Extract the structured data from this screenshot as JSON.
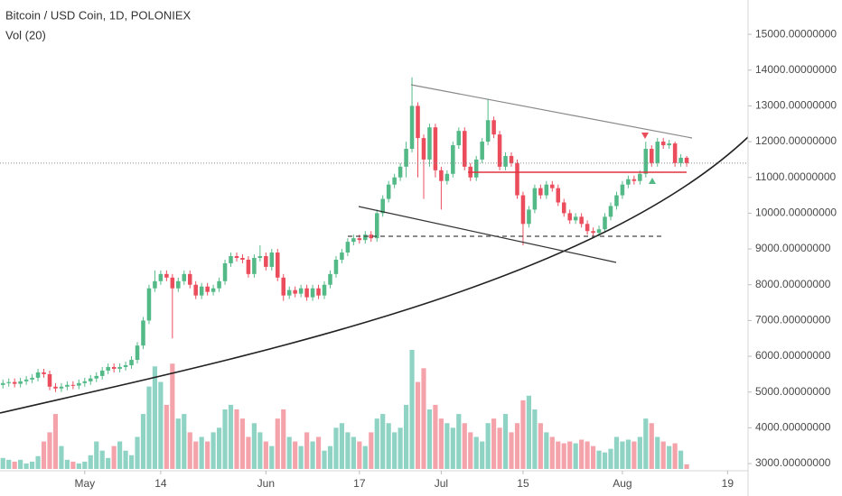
{
  "chart_data": {
    "type": "candlestick",
    "title": "Bitcoin / USD Coin, 1D, POLONIEX",
    "volume_label": "Vol (20)",
    "up_color": "#53b987",
    "down_color": "#eb4d5c",
    "volume_up_color": "#8fd3c4",
    "volume_down_color": "#f4a3ab",
    "categories": [
      null,
      null,
      null,
      null,
      null,
      null,
      null,
      null,
      null,
      null,
      null,
      null,
      null,
      null,
      "May",
      null,
      null,
      null,
      null,
      null,
      null,
      null,
      null,
      null,
      null,
      null,
      null,
      "14",
      null,
      null,
      null,
      null,
      null,
      null,
      null,
      null,
      null,
      null,
      null,
      null,
      null,
      null,
      null,
      null,
      null,
      "Jun",
      null,
      null,
      null,
      null,
      null,
      null,
      null,
      null,
      null,
      null,
      null,
      null,
      null,
      null,
      null,
      "17",
      null,
      null,
      null,
      null,
      null,
      null,
      null,
      null,
      null,
      null,
      null,
      null,
      null,
      "Jul",
      null,
      null,
      null,
      null,
      null,
      null,
      null,
      null,
      null,
      null,
      null,
      null,
      null,
      "15",
      null,
      null,
      null,
      null,
      null,
      null,
      null,
      null,
      null,
      null,
      null,
      null,
      null,
      null,
      null,
      null,
      "Aug",
      null,
      null,
      null,
      null,
      null,
      null,
      null,
      null,
      null,
      null,
      null,
      null,
      null,
      null,
      null,
      null,
      null,
      "19",
      null,
      null,
      null
    ],
    "open": [
      5200,
      5250,
      5280,
      5230,
      5300,
      5350,
      5400,
      5550,
      5500,
      5150,
      5100,
      5150,
      5200,
      5180,
      5250,
      5300,
      5380,
      5450,
      5600,
      5700,
      5650,
      5700,
      5750,
      5900,
      6300,
      7000,
      7900,
      8100,
      8300,
      8200,
      7900,
      8100,
      8300,
      8000,
      7700,
      7950,
      7800,
      7900,
      8100,
      8600,
      8800,
      8750,
      8700,
      8300,
      8750,
      8800,
      8500,
      8900,
      8200,
      7700,
      7850,
      7750,
      7900,
      7650,
      7900,
      7700,
      8000,
      8300,
      8700,
      8900,
      9200,
      9300,
      9250,
      9400,
      9300,
      10000,
      10400,
      10800,
      11000,
      11300,
      11800,
      13000,
      12100,
      11500,
      12400,
      11200,
      10900,
      11100,
      11900,
      12300,
      11300,
      11000,
      11500,
      12000,
      12600,
      12200,
      11300,
      11600,
      11400,
      10500,
      9700,
      10100,
      10700,
      10500,
      10800,
      10700,
      10300,
      10000,
      9800,
      9900,
      9700,
      9500,
      9450,
      9550,
      9900,
      10200,
      10500,
      10800,
      10950,
      10900,
      11100,
      11800,
      11400,
      12000,
      11900,
      11950,
      11400,
      11550,
      null,
      null,
      null,
      null,
      null,
      null,
      null,
      null,
      null,
      null
    ],
    "high": [
      5350,
      5380,
      5380,
      5400,
      5450,
      5500,
      5650,
      5650,
      5600,
      5250,
      5250,
      5300,
      5300,
      5350,
      5400,
      5480,
      5550,
      5700,
      5800,
      5800,
      5800,
      5850,
      6000,
      6400,
      7100,
      8000,
      8400,
      8400,
      8400,
      8300,
      8200,
      8400,
      8400,
      8100,
      8050,
      8050,
      8000,
      8200,
      8700,
      8900,
      8900,
      8850,
      8800,
      8850,
      9100,
      8900,
      9000,
      9000,
      8300,
      7950,
      7950,
      8000,
      8000,
      8000,
      8000,
      8100,
      8400,
      8800,
      9000,
      9300,
      9400,
      9400,
      9500,
      9500,
      10100,
      10500,
      10900,
      11100,
      11400,
      12000,
      13800,
      13100,
      12200,
      12500,
      12500,
      11300,
      11200,
      12000,
      12400,
      12400,
      11400,
      11600,
      12100,
      13200,
      12700,
      12300,
      11700,
      11700,
      11500,
      10600,
      10200,
      10800,
      10800,
      10900,
      10900,
      10800,
      10400,
      10100,
      10000,
      10000,
      9800,
      9600,
      9650,
      10000,
      10300,
      10600,
      10900,
      11050,
      11050,
      11200,
      12000,
      11900,
      12100,
      12100,
      12050,
      12000,
      11650,
      11600,
      null,
      null,
      null,
      null,
      null,
      null,
      null,
      null,
      null,
      null
    ],
    "low": [
      5100,
      5150,
      5130,
      5130,
      5200,
      5250,
      5300,
      5400,
      5050,
      5000,
      5000,
      5050,
      5080,
      5080,
      5150,
      5200,
      5280,
      5350,
      5500,
      5550,
      5550,
      5600,
      5650,
      5800,
      6200,
      6900,
      7800,
      8000,
      8100,
      6500,
      7800,
      8000,
      7900,
      7600,
      7600,
      7700,
      7700,
      7800,
      8000,
      8500,
      8650,
      8600,
      8200,
      8200,
      8650,
      8400,
      8400,
      8100,
      7550,
      7600,
      7650,
      7650,
      7550,
      7550,
      7600,
      7600,
      7900,
      8200,
      8600,
      8800,
      9100,
      9150,
      9150,
      9200,
      9200,
      9900,
      10300,
      10700,
      10900,
      11000,
      11700,
      11000,
      10400,
      11300,
      11000,
      10100,
      10800,
      11000,
      11800,
      11200,
      10900,
      10900,
      11400,
      11900,
      12100,
      11200,
      11200,
      11300,
      10400,
      9100,
      9600,
      10000,
      10400,
      10400,
      10600,
      10200,
      9900,
      9700,
      9700,
      9600,
      9400,
      9350,
      9350,
      9450,
      9800,
      10100,
      10400,
      10700,
      10800,
      10800,
      11000,
      11300,
      11300,
      11800,
      11800,
      11300,
      11300,
      11300,
      null,
      null,
      null,
      null,
      null,
      null,
      null,
      null,
      null,
      null
    ],
    "close": [
      5250,
      5280,
      5230,
      5300,
      5350,
      5400,
      5550,
      5500,
      5150,
      5100,
      5150,
      5200,
      5180,
      5250,
      5300,
      5380,
      5450,
      5600,
      5700,
      5650,
      5700,
      5750,
      5900,
      6300,
      7000,
      7900,
      8100,
      8300,
      8200,
      7900,
      8100,
      8300,
      8000,
      7700,
      7950,
      7800,
      7900,
      8100,
      8600,
      8800,
      8750,
      8700,
      8300,
      8750,
      8800,
      8500,
      8900,
      8200,
      7700,
      7850,
      7750,
      7900,
      7650,
      7900,
      7700,
      8000,
      8300,
      8700,
      8900,
      9200,
      9300,
      9250,
      9400,
      9300,
      10000,
      10400,
      10800,
      11000,
      11300,
      11800,
      13000,
      12100,
      11500,
      12400,
      11200,
      10900,
      11100,
      11900,
      12300,
      11300,
      11000,
      11500,
      12000,
      12600,
      12200,
      11300,
      11600,
      11400,
      10500,
      9700,
      10100,
      10700,
      10500,
      10800,
      10700,
      10300,
      10000,
      9800,
      9900,
      9700,
      9500,
      9450,
      9550,
      9900,
      10200,
      10500,
      10800,
      10950,
      10900,
      11100,
      11800,
      11400,
      12000,
      11900,
      11950,
      11400,
      11550,
      11400,
      null,
      null,
      null,
      null,
      null,
      null,
      null,
      null,
      null,
      null
    ],
    "volume": [
      12,
      10,
      8,
      10,
      6,
      8,
      14,
      30,
      40,
      60,
      25,
      10,
      8,
      6,
      8,
      15,
      30,
      20,
      12,
      25,
      30,
      20,
      15,
      35,
      60,
      90,
      112,
      95,
      70,
      115,
      55,
      60,
      40,
      30,
      35,
      30,
      40,
      45,
      65,
      70,
      65,
      55,
      35,
      50,
      40,
      30,
      25,
      55,
      65,
      35,
      30,
      25,
      40,
      30,
      35,
      20,
      25,
      45,
      50,
      40,
      35,
      30,
      25,
      40,
      55,
      60,
      50,
      40,
      45,
      70,
      130,
      95,
      110,
      65,
      70,
      55,
      50,
      45,
      60,
      50,
      40,
      35,
      30,
      50,
      55,
      45,
      60,
      40,
      50,
      75,
      80,
      65,
      50,
      40,
      35,
      30,
      28,
      30,
      28,
      32,
      30,
      25,
      20,
      18,
      22,
      35,
      30,
      32,
      30,
      35,
      55,
      50,
      35,
      30,
      25,
      28,
      20,
      5,
      null,
      null,
      null,
      null,
      null,
      null,
      null,
      null,
      null,
      null
    ],
    "ylim": [
      2800,
      15960
    ],
    "yticks": [
      {
        "value": 3000,
        "label": "3000.00000000"
      },
      {
        "value": 4000,
        "label": "4000.00000000"
      },
      {
        "value": 5000,
        "label": "5000.00000000"
      },
      {
        "value": 6000,
        "label": "6000.00000000"
      },
      {
        "value": 7000,
        "label": "7000.00000000"
      },
      {
        "value": 8000,
        "label": "8000.00000000"
      },
      {
        "value": 9000,
        "label": "9000.00000000"
      },
      {
        "value": 10000,
        "label": "10000.00000000"
      },
      {
        "value": 11000,
        "label": "11000.00000000"
      },
      {
        "value": 12000,
        "label": "12000.00000000"
      },
      {
        "value": 13000,
        "label": "13000.00000000"
      },
      {
        "value": 14000,
        "label": "14000.00000000"
      },
      {
        "value": 15000,
        "label": "15000.00000000"
      }
    ],
    "grid": false
  }
}
